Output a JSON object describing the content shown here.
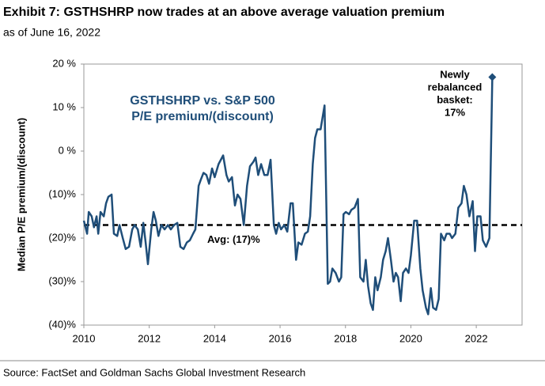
{
  "chart_data": {
    "type": "line",
    "title": "Exhibit 7: GSTHSHRP now trades at an above average valuation premium",
    "subtitle": "as of June 16, 2022",
    "inner_title": [
      "GSTHSHRP vs. S&P 500",
      "P/E premium/(discount)"
    ],
    "y_label": "Median P/E premium/(discount)",
    "source": "Source: FactSet and Goldman Sachs Global Investment Research",
    "annotation": [
      "Newly",
      "rebalanced",
      "basket:",
      "17%"
    ],
    "avg": -17,
    "avg_label": "Avg: (17)%",
    "color": "#1f4e79",
    "avg_color": "#000000",
    "x": [
      2010.0,
      2010.1,
      2010.15,
      2010.24,
      2010.31,
      2010.39,
      2010.44,
      2010.51,
      2010.61,
      2010.68,
      2010.75,
      2010.85,
      2010.92,
      2011.02,
      2011.09,
      2011.19,
      2011.28,
      2011.38,
      2011.48,
      2011.55,
      2011.65,
      2011.74,
      2011.82,
      2011.89,
      2011.96,
      2012.06,
      2012.13,
      2012.2,
      2012.28,
      2012.37,
      2012.47,
      2012.57,
      2012.66,
      2012.76,
      2012.86,
      2012.95,
      2013.05,
      2013.15,
      2013.24,
      2013.34,
      2013.41,
      2013.51,
      2013.58,
      2013.66,
      2013.75,
      2013.83,
      2013.92,
      2014.0,
      2014.12,
      2014.26,
      2014.36,
      2014.43,
      2014.53,
      2014.62,
      2014.7,
      2014.79,
      2014.89,
      2014.99,
      2015.08,
      2015.18,
      2015.25,
      2015.33,
      2015.42,
      2015.52,
      2015.62,
      2015.71,
      2015.81,
      2015.88,
      2015.96,
      2016.03,
      2016.13,
      2016.22,
      2016.32,
      2016.39,
      2016.49,
      2016.56,
      2016.66,
      2016.76,
      2016.85,
      2016.92,
      2017.0,
      2017.07,
      2017.14,
      2017.24,
      2017.36,
      2017.46,
      2017.53,
      2017.6,
      2017.7,
      2017.8,
      2017.87,
      2017.94,
      2018.01,
      2018.11,
      2018.18,
      2018.28,
      2018.38,
      2018.45,
      2018.55,
      2018.62,
      2018.69,
      2018.77,
      2018.84,
      2018.91,
      2018.98,
      2019.08,
      2019.15,
      2019.23,
      2019.3,
      2019.39,
      2019.47,
      2019.54,
      2019.61,
      2019.69,
      2019.76,
      2019.85,
      2019.93,
      2020.0,
      2020.1,
      2020.19,
      2020.29,
      2020.36,
      2020.46,
      2020.53,
      2020.61,
      2020.68,
      2020.77,
      2020.85,
      2020.92,
      2021.02,
      2021.09,
      2021.19,
      2021.26,
      2021.36,
      2021.45,
      2021.55,
      2021.62,
      2021.7,
      2021.79,
      2021.89,
      2021.96,
      2022.03,
      2022.13,
      2022.2,
      2022.3,
      2022.4,
      2022.49
    ],
    "values": [
      -16,
      -19,
      -14,
      -15,
      -17.5,
      -15,
      -19,
      -14,
      -15,
      -12,
      -10.5,
      -10,
      -19,
      -19.5,
      -17,
      -20,
      -22.5,
      -22,
      -18,
      -17,
      -18,
      -22,
      -16.5,
      -21,
      -26,
      -18,
      -14,
      -16,
      -19.5,
      -17,
      -18,
      -17,
      -18,
      -17,
      -16.5,
      -22,
      -22.5,
      -21,
      -20.5,
      -19,
      -18,
      -8,
      -6.5,
      -5,
      -5.5,
      -7.5,
      -4,
      -6,
      -3,
      -1,
      -5.5,
      -7,
      -6,
      -12.5,
      -10,
      -11,
      -17,
      -8,
      -3.5,
      -2.5,
      -1.5,
      -5.5,
      -3,
      -5.5,
      -5.5,
      -2,
      -17,
      -19,
      -16.5,
      -18,
      -17,
      -18.5,
      -12,
      -12,
      -25,
      -21,
      -21.5,
      -19,
      -18.5,
      -15,
      -3,
      3,
      5,
      5,
      10.5,
      -30.5,
      -30,
      -27,
      -28,
      -30,
      -29,
      -14.5,
      -14,
      -14.5,
      -13.5,
      -13,
      -11,
      -29,
      -30,
      -25,
      -31,
      -35,
      -36.5,
      -29,
      -32,
      -29,
      -25,
      -23,
      -20,
      -25,
      -30,
      -28,
      -29,
      -34.5,
      -28,
      -27,
      -28,
      -24,
      -16,
      -16,
      -27,
      -32,
      -36,
      -37.5,
      -31.5,
      -36,
      -36.5,
      -34,
      -19,
      -20.5,
      -19,
      -19,
      -20,
      -19,
      -13,
      -12,
      -8,
      -10,
      -15,
      -11.5,
      -23,
      -15,
      -15,
      -20.5,
      -22,
      -20,
      17
    ],
    "xlim": [
      2010,
      2023.4
    ],
    "xticks": [
      2010,
      2012,
      2014,
      2016,
      2018,
      2020,
      2022
    ],
    "ylim": [
      -40,
      20
    ],
    "yticks": [
      {
        "value": -40,
        "label": "(40)%"
      },
      {
        "value": -30,
        "label": "(30)%"
      },
      {
        "value": -20,
        "label": "(20)%"
      },
      {
        "value": -10,
        "label": "(10)%"
      },
      {
        "value": 0,
        "label": "0 %"
      },
      {
        "value": 10,
        "label": "10 %"
      },
      {
        "value": 20,
        "label": "20 %"
      }
    ],
    "grid": false
  }
}
